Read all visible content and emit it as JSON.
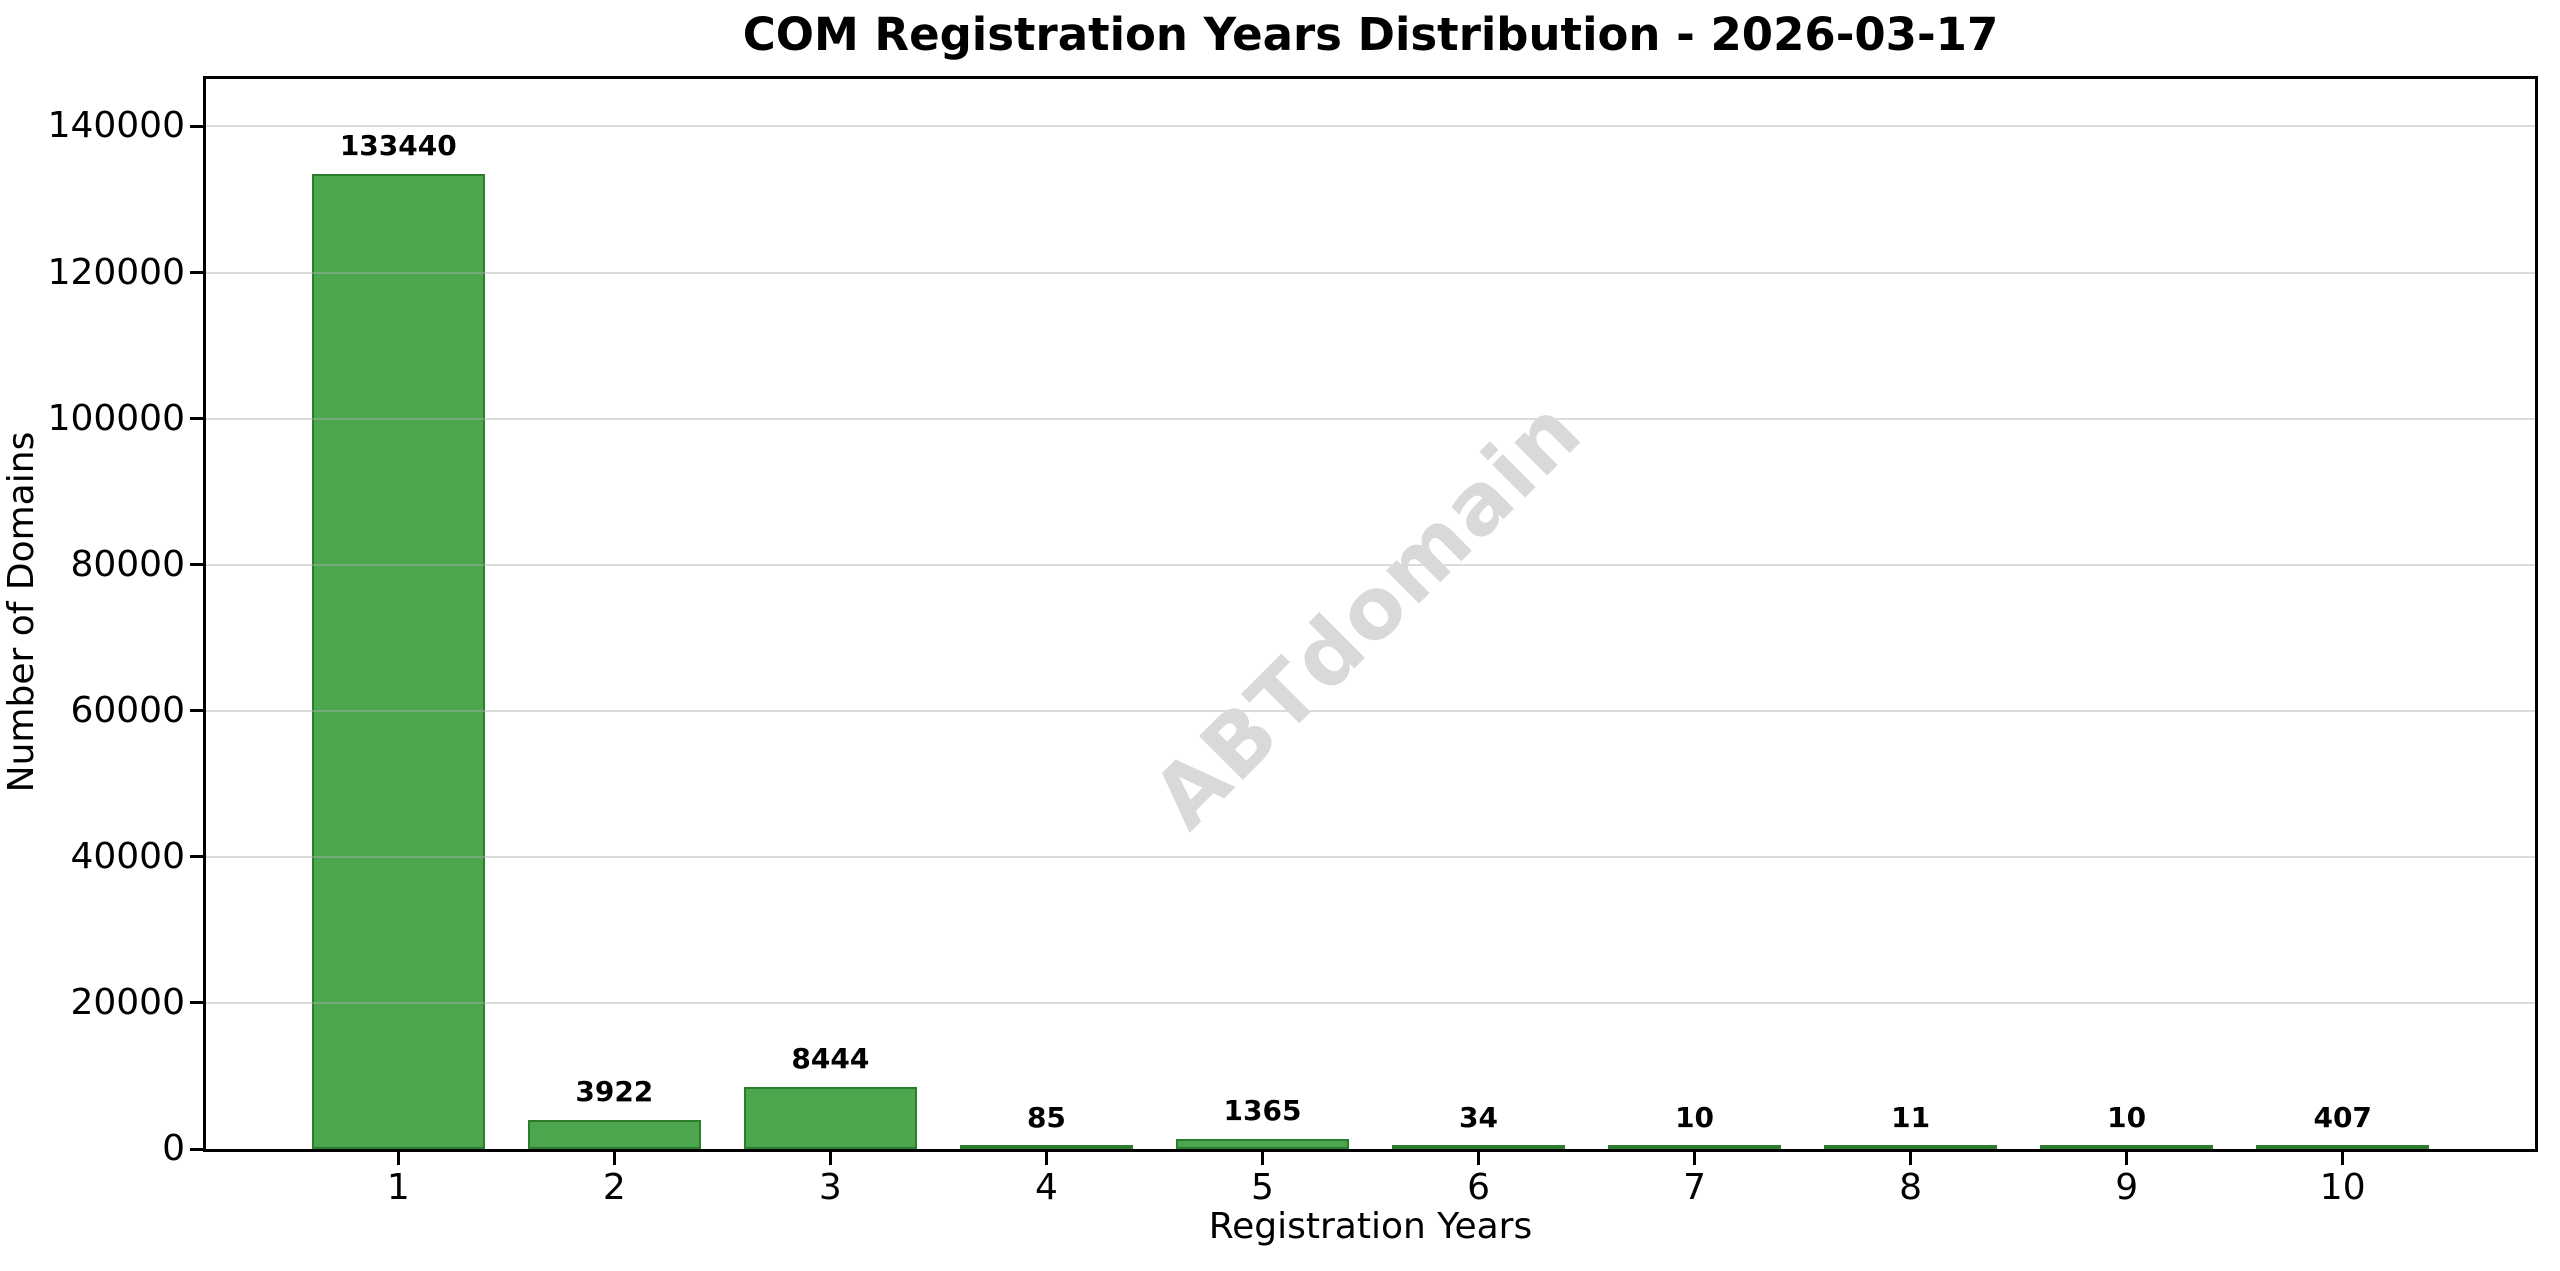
{
  "watermark": "ABTdomain",
  "chart_data": {
    "type": "bar",
    "title": "COM Registration Years Distribution - 2026-03-17",
    "xlabel": "Registration Years",
    "ylabel": "Number of Domains",
    "categories": [
      "1",
      "2",
      "3",
      "4",
      "5",
      "6",
      "7",
      "8",
      "9",
      "10"
    ],
    "values": [
      133440,
      3922,
      8444,
      85,
      1365,
      34,
      10,
      11,
      10,
      407
    ],
    "bar_value_labels": [
      "133440",
      "3922",
      "8444",
      "85",
      "1365",
      "34",
      "10",
      "11",
      "10",
      "407"
    ],
    "yticks": [
      0,
      20000,
      40000,
      60000,
      80000,
      100000,
      120000,
      140000
    ],
    "ytick_labels": [
      "0",
      "20000",
      "40000",
      "60000",
      "80000",
      "100000",
      "120000",
      "140000"
    ],
    "ylim": [
      0,
      146500
    ],
    "xlim": [
      0.11,
      10.89
    ],
    "bar_width_fraction": 0.8,
    "grid": "horizontal",
    "legend": "none",
    "bar_color": "#4CA64E",
    "bar_edge_color": "#2E7D2F",
    "grid_color": "rgba(176,176,176,0.45)",
    "watermark_color": "#D9D9D9",
    "text_color": "#000000",
    "background_color": "#FFFFFF"
  }
}
